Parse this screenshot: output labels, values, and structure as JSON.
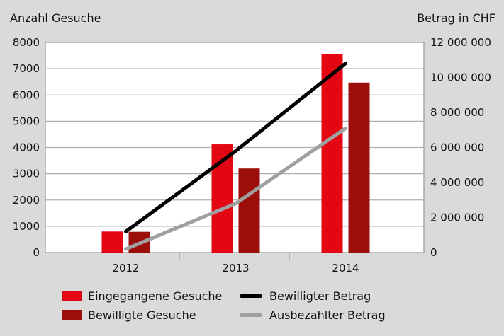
{
  "chart_data": {
    "type": "bar",
    "title": "",
    "left_axis": {
      "label": "Anzahl Gesuche",
      "ylim": [
        0,
        8000
      ],
      "ticks": [
        0,
        1000,
        2000,
        3000,
        4000,
        5000,
        6000,
        7000,
        8000
      ]
    },
    "right_axis": {
      "label": "Betrag in CHF",
      "ylim": [
        0,
        12000000
      ],
      "ticks": [
        0,
        2000000,
        4000000,
        6000000,
        8000000,
        10000000,
        12000000
      ],
      "tick_labels": [
        "0",
        "2 000 000",
        "4 000 000",
        "6 000 000",
        "8 000 000",
        "10 000 000",
        "12 000 000"
      ]
    },
    "categories": [
      "2012",
      "2013",
      "2014"
    ],
    "series": [
      {
        "name": "Eingegangene Gesuche",
        "type": "bar",
        "axis": "left",
        "color": "#e30613",
        "values": [
          800,
          4120,
          7570
        ]
      },
      {
        "name": "Bewilligte Gesuche",
        "type": "bar",
        "axis": "left",
        "color": "#9b0e0a",
        "values": [
          790,
          3200,
          6470
        ]
      },
      {
        "name": "Bewilligter Betrag",
        "type": "line",
        "axis": "right",
        "color": "#000000",
        "values": [
          1200000,
          5800000,
          10800000
        ]
      },
      {
        "name": "Ausbezahlter Betrag",
        "type": "line",
        "axis": "right",
        "color": "#a0a0a0",
        "values": [
          200000,
          2800000,
          7100000
        ]
      }
    ],
    "grid": true,
    "legend_position": "bottom"
  },
  "labels": {
    "left_title": "Anzahl Gesuche",
    "right_title": "Betrag in CHF",
    "legend": [
      "Eingegangene Gesuche",
      "Bewilligte Gesuche",
      "Bewilligter Betrag",
      "Ausbezahlter Betrag"
    ]
  }
}
